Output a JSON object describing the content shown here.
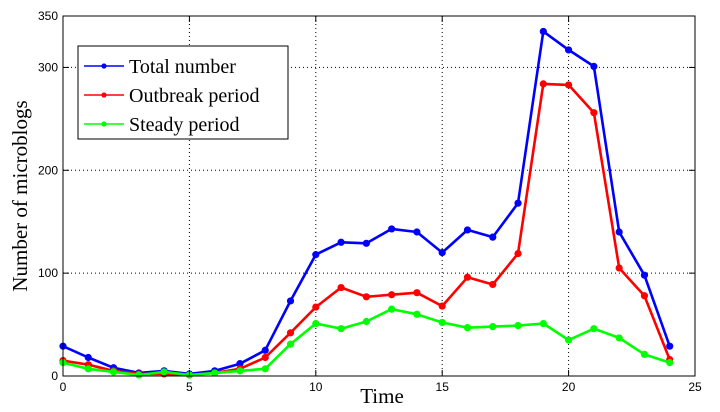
{
  "chart_data": {
    "type": "line",
    "xlabel": "Time",
    "ylabel": "Number of microblogs",
    "xlim": [
      0,
      25
    ],
    "ylim": [
      0,
      350
    ],
    "x_ticks": [
      0,
      5,
      10,
      15,
      20,
      25
    ],
    "y_ticks": [
      0,
      100,
      200,
      300,
      350
    ],
    "x_tick_labels": [
      "0",
      "5",
      "10",
      "15",
      "20",
      "25"
    ],
    "y_tick_labels": [
      "0",
      "100",
      "200",
      "300",
      "350"
    ],
    "grid": true,
    "legend_position": "top-left",
    "x": [
      0,
      1,
      2,
      3,
      4,
      5,
      6,
      7,
      8,
      9,
      10,
      11,
      12,
      13,
      14,
      15,
      16,
      17,
      18,
      19,
      20,
      21,
      22,
      23,
      24
    ],
    "series": [
      {
        "name": "Total number",
        "color": "#0000ff",
        "values": [
          29,
          18,
          8,
          3,
          5,
          2,
          5,
          12,
          25,
          73,
          118,
          130,
          129,
          143,
          140,
          120,
          142,
          135,
          168,
          335,
          317,
          301,
          140,
          98,
          29
        ]
      },
      {
        "name": "Outbreak period",
        "color": "#ff0000",
        "values": [
          15,
          11,
          5,
          2,
          2,
          1,
          3,
          7,
          18,
          42,
          67,
          86,
          77,
          79,
          81,
          68,
          96,
          89,
          119,
          284,
          283,
          256,
          105,
          78,
          16
        ]
      },
      {
        "name": "Steady period",
        "color": "#00ff00",
        "values": [
          13,
          7,
          4,
          1,
          4,
          1,
          3,
          5,
          7,
          31,
          51,
          46,
          53,
          65,
          60,
          52,
          47,
          48,
          49,
          51,
          35,
          46,
          37,
          21,
          13
        ]
      }
    ]
  }
}
